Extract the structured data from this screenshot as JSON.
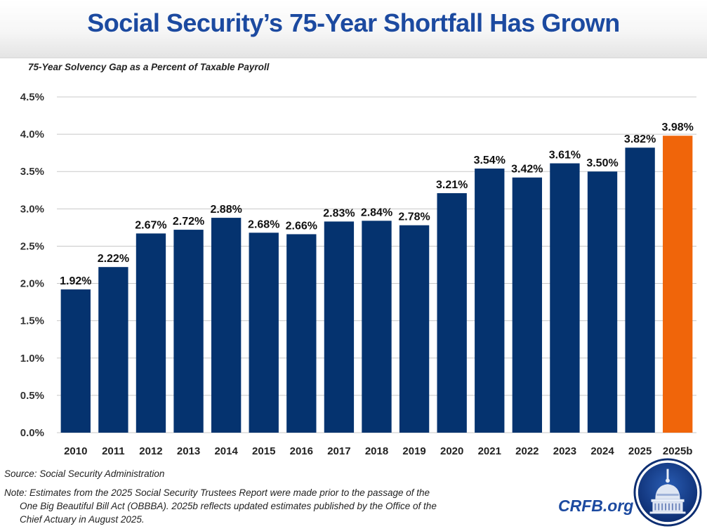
{
  "header": {
    "title": "Social Security’s 75-Year Shortfall Has Grown"
  },
  "chart_data": {
    "type": "bar",
    "title": "Social Security’s 75-Year Shortfall Has Grown",
    "subtitle": "75-Year Solvency Gap as a Percent of Taxable Payroll",
    "xlabel": "",
    "ylabel": "",
    "categories": [
      "2010",
      "2011",
      "2012",
      "2013",
      "2014",
      "2015",
      "2016",
      "2017",
      "2018",
      "2019",
      "2020",
      "2021",
      "2022",
      "2023",
      "2024",
      "2025",
      "2025b"
    ],
    "values": [
      1.92,
      2.22,
      2.67,
      2.72,
      2.88,
      2.68,
      2.66,
      2.83,
      2.84,
      2.78,
      3.21,
      3.54,
      3.42,
      3.61,
      3.5,
      3.82,
      3.98
    ],
    "data_labels": [
      "1.92%",
      "2.22%",
      "2.67%",
      "2.72%",
      "2.88%",
      "2.68%",
      "2.66%",
      "2.83%",
      "2.84%",
      "2.78%",
      "3.21%",
      "3.54%",
      "3.42%",
      "3.61%",
      "3.50%",
      "3.82%",
      "3.98%"
    ],
    "highlight_index": 16,
    "ylim": [
      0,
      4.5
    ],
    "yticks": [
      0,
      0.5,
      1.0,
      1.5,
      2.0,
      2.5,
      3.0,
      3.5,
      4.0,
      4.5
    ],
    "ytick_labels": [
      "0.0%",
      "0.5%",
      "1.0%",
      "1.5%",
      "2.0%",
      "2.5%",
      "3.0%",
      "3.5%",
      "4.0%",
      "4.5%"
    ],
    "grid": true,
    "legend": "none",
    "colors": {
      "bar": "#05336f",
      "highlight": "#f0650a",
      "grid": "#c8c8c8"
    }
  },
  "footer": {
    "source": "Source: Social Security Administration",
    "note_lines": [
      "Note: Estimates from the 2025 Social Security Trustees Report were made prior to the passage of the",
      "One Big Beautiful Bill Act (OBBBA). 2025b reflects updated estimates published by the Office of the",
      "Chief Actuary in August 2025."
    ],
    "brand": "CRFB.org"
  }
}
